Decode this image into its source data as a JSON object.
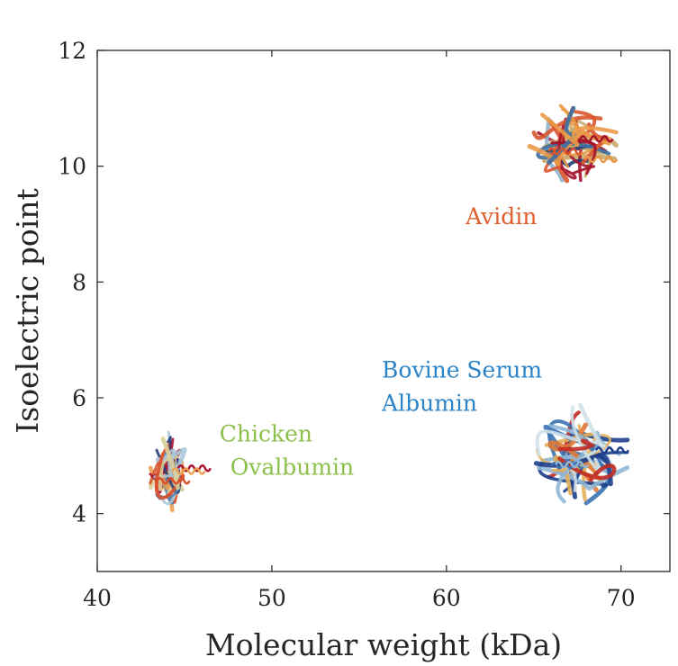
{
  "chart_data": {
    "type": "scatter",
    "title": "",
    "xlabel": "Molecular weight (kDa)",
    "ylabel": "Isoelectric point",
    "xlim": [
      40,
      72.8
    ],
    "ylim": [
      3,
      12
    ],
    "xticks": [
      "40",
      "50",
      "60",
      "70"
    ],
    "yticks": [
      "4",
      "6",
      "8",
      "10",
      "12"
    ],
    "grid": false,
    "points": [
      {
        "name": "Avidin",
        "label_lines": [
          "Avidin"
        ],
        "x": 67.4,
        "y": 10.4,
        "color": "#e05d2c",
        "marker": "protein-structure",
        "label_x": 61.1,
        "label_y": 9.0
      },
      {
        "name": "Bovine Serum Albumin",
        "label_lines": [
          "Bovine Serum",
          "Albumin"
        ],
        "x": 67.6,
        "y": 5.0,
        "color": "#2b83c7",
        "marker": "protein-structure",
        "label_x": 56.3,
        "label_y": 6.35
      },
      {
        "name": "Chicken Ovalbumin",
        "label_lines": [
          "Chicken",
          "Ovalbumin"
        ],
        "x": 44.0,
        "y": 4.7,
        "color": "#8cc04a",
        "marker": "protein-structure",
        "label_x": 47.0,
        "label_y": 5.25
      }
    ]
  }
}
